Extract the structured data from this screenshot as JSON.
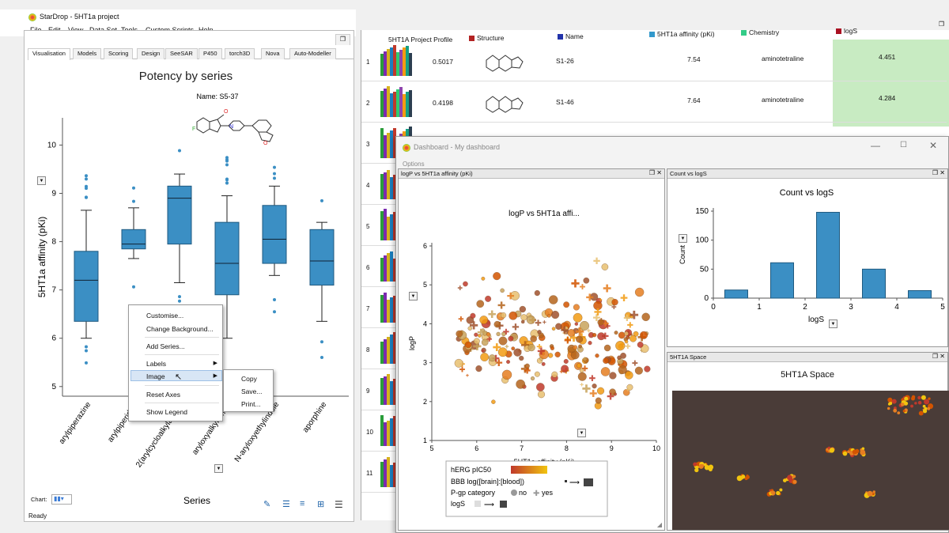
{
  "app": {
    "title": "StarDrop - 5HT1a project",
    "status": "Ready"
  },
  "menu": [
    "File",
    "Edit",
    "View",
    "Data Set",
    "Tools",
    "Custom Scripts",
    "Help"
  ],
  "tabs": [
    "Visualisation",
    "Models",
    "Scoring",
    "Design",
    "SeeSAR",
    "P450",
    "torch3D",
    "Nova",
    "Auto-Modeller"
  ],
  "left_chart": {
    "chart_data": {
      "type": "box",
      "title": "Potency by series",
      "ylabel": "5HT1a affinity (pKi)",
      "xlabel": "Series",
      "ylim": [
        4.8,
        10.4
      ],
      "yticks": [
        5,
        6,
        7,
        8,
        9,
        10
      ],
      "categories": [
        "arylpiperazine",
        "arylpiperidine",
        "2(arylcycloalkylamine)",
        "aryloxyalkylamine",
        "N-aryloxyethylindole",
        "aporphine"
      ],
      "boxes": [
        {
          "min": 6.0,
          "q1": 6.35,
          "median": 7.2,
          "q3": 7.8,
          "max": 8.65
        },
        {
          "min": 7.65,
          "q1": 7.85,
          "median": 7.95,
          "q3": 8.25,
          "max": 8.7
        },
        {
          "min": 7.15,
          "q1": 7.95,
          "median": 8.9,
          "q3": 9.15,
          "max": 9.4
        },
        {
          "min": 6.0,
          "q1": 6.9,
          "median": 7.55,
          "q3": 8.4,
          "max": 8.95
        },
        {
          "min": 7.3,
          "q1": 7.55,
          "median": 8.05,
          "q3": 8.75,
          "max": 9.15
        },
        {
          "min": 6.35,
          "q1": 7.1,
          "median": 7.6,
          "q3": 8.25,
          "max": 8.4
        }
      ]
    },
    "hover_label": "Name: S5-37",
    "chart_label": "Chart:"
  },
  "context_menu": {
    "items": [
      "Customise...",
      "Change Background...",
      "Add Series...",
      "Labels",
      "Image",
      "Reset Axes",
      "Show Legend"
    ],
    "submenu": [
      "Copy",
      "Save...",
      "Print..."
    ]
  },
  "grid": {
    "headers": [
      "5HT1A Project Profile",
      "Structure",
      "Name",
      "5HT1a affinity (pKi)",
      "Chemistry",
      "logS"
    ],
    "header_colors": [
      "#ffffff",
      "#b22222",
      "#2233aa",
      "#3399cc",
      "#33cc88",
      "#aa1122"
    ],
    "rows": [
      {
        "n": "1",
        "profile": "0.5017",
        "name": "S1-26",
        "pki": "7.54",
        "chem": "aminotetraline",
        "logs": "4.451"
      },
      {
        "n": "2",
        "profile": "0.4198",
        "name": "S1-46",
        "pki": "7.64",
        "chem": "aminotetraline",
        "logs": "4.284"
      },
      {
        "n": "3"
      },
      {
        "n": "4"
      },
      {
        "n": "5"
      },
      {
        "n": "6"
      },
      {
        "n": "7"
      },
      {
        "n": "8"
      },
      {
        "n": "9"
      },
      {
        "n": "10"
      },
      {
        "n": "11"
      }
    ]
  },
  "dashboard": {
    "title": "Dashboard - My dashboard",
    "options": "Options",
    "scatter": {
      "pane": "logP vs 5HT1a affinity (pKi)",
      "chart_data": {
        "type": "scatter",
        "title": "logP vs 5HT1a affi...",
        "xlabel": "5HT1a affinity (pKi)",
        "ylabel": "logP",
        "xlim": [
          5,
          10
        ],
        "ylim": [
          1,
          6
        ],
        "xticks": [
          5,
          6,
          7,
          8,
          9,
          10
        ],
        "yticks": [
          1,
          2,
          3,
          4,
          5,
          6
        ]
      },
      "legend": {
        "herg": "hERG pIC50",
        "bbb": "BBB log([brain]:[blood])",
        "pgp": "P-gp category",
        "no": "no",
        "yes": "yes",
        "logs": "logS"
      }
    },
    "hist": {
      "pane": "Count vs logS",
      "chart_data": {
        "type": "bar",
        "title": "Count vs logS",
        "xlabel": "logS",
        "ylabel": "Count",
        "xlim": [
          0,
          5
        ],
        "ylim": [
          0,
          150
        ],
        "xticks": [
          0,
          1,
          2,
          3,
          4,
          5
        ],
        "yticks": [
          0,
          50,
          100,
          150
        ],
        "bins": [
          [
            0.25,
            0.75,
            14
          ],
          [
            1.25,
            1.75,
            61
          ],
          [
            2.25,
            2.75,
            148
          ],
          [
            3.25,
            3.75,
            50
          ],
          [
            4.25,
            4.75,
            13
          ]
        ]
      }
    },
    "space": {
      "pane": "5HT1A Space",
      "title": "5HT1A Space"
    }
  }
}
